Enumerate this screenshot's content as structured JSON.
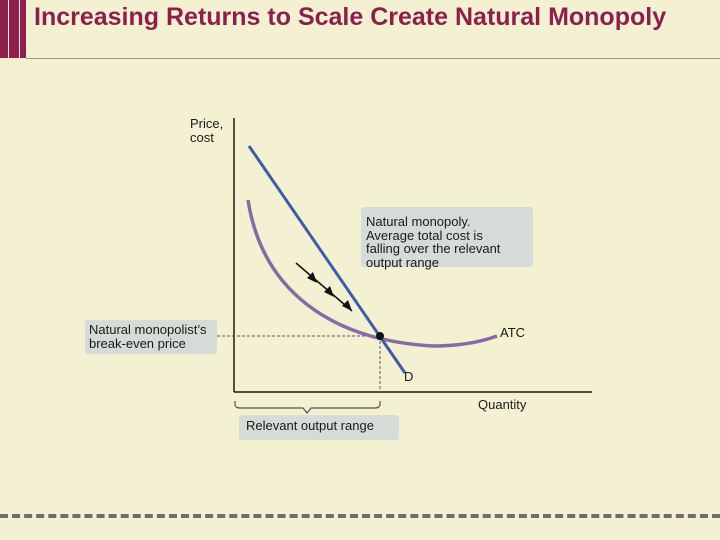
{
  "slide": {
    "title": "Increasing Returns to Scale Create Natural Monopoly"
  },
  "diagram": {
    "y_axis_label": "Price,\ncost",
    "x_axis_label": "Quantity",
    "atc_label": "ATC",
    "demand_label": "D",
    "callout_natural_monopoly": "Natural monopoly.\nAverage total cost is\nfalling over the relevant\noutput range",
    "callout_break_even": "Natural monopolist’s\nbreak-even price",
    "callout_relevant_range": "Relevant output range"
  },
  "colors": {
    "background": "#f3f1d2",
    "title": "#8e1f4c",
    "demand_curve": "#3d5ea6",
    "atc_curve": "#8a6aa6",
    "callout_box": "#d5dbd6",
    "axes": "#1a1a1a"
  }
}
